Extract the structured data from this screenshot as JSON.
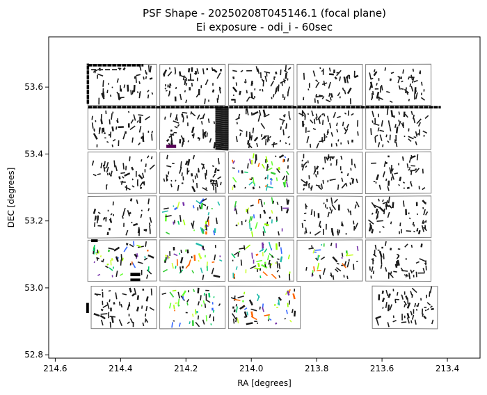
{
  "chart_data": {
    "type": "scatter",
    "title": "PSF Shape - 20250208T045146.1 (focal plane)",
    "subtitle": "Ei exposure - odi_i - 60sec",
    "xlabel": "RA [degrees]",
    "ylabel": "DEC [degrees]",
    "xlim": [
      214.62,
      213.3
    ],
    "ylim": [
      52.79,
      53.75
    ],
    "x_inverted": true,
    "xticks": [
      214.6,
      214.4,
      214.2,
      214.0,
      213.8,
      213.6,
      213.4
    ],
    "xtick_labels": [
      "214.6",
      "214.4",
      "214.2",
      "214.0",
      "213.8",
      "213.6",
      "213.4"
    ],
    "yticks": [
      52.8,
      53.0,
      53.2,
      53.4,
      53.6
    ],
    "ytick_labels": [
      "52.8",
      "53.0",
      "53.2",
      "53.4",
      "53.6"
    ],
    "grid": false,
    "chip_grid": {
      "ra_edges": [
        [
          214.5,
          214.29
        ],
        [
          214.28,
          214.08
        ],
        [
          214.07,
          213.87
        ],
        [
          213.86,
          213.66
        ],
        [
          213.65,
          213.45
        ]
      ],
      "dec_rows": [
        [
          53.545,
          53.668
        ],
        [
          53.414,
          53.538
        ],
        [
          53.282,
          53.406
        ],
        [
          53.15,
          53.274
        ],
        [
          53.02,
          53.143
        ],
        [
          52.878,
          53.005
        ]
      ],
      "missing": [
        [
          5,
          3
        ]
      ],
      "row5_ra_edges": [
        [
          214.49,
          214.29
        ],
        [
          214.28,
          214.08
        ],
        [
          214.07,
          213.85
        ],
        [
          213.86,
          213.66
        ],
        [
          213.63,
          213.43
        ]
      ]
    },
    "edge_color": "#808080",
    "default_stick_color": "#1a1a1a",
    "colored_chips": [
      [
        2,
        2
      ],
      [
        3,
        1
      ],
      [
        3,
        2
      ],
      [
        4,
        0
      ],
      [
        4,
        1
      ],
      [
        4,
        2
      ],
      [
        4,
        3
      ],
      [
        5,
        1
      ],
      [
        5,
        2
      ]
    ],
    "stick_palette": [
      "#33cc33",
      "#66ff33",
      "#00cc66",
      "#99ff00",
      "#ccff33",
      "#22bbaa",
      "#7733aa",
      "#ff6600",
      "#3366ff"
    ],
    "saturated_features": [
      {
        "kind": "vertical_block",
        "ra": [
          214.11,
          214.07
        ],
        "dec": [
          53.41,
          53.54
        ],
        "color": "#1a1a1a"
      },
      {
        "kind": "block",
        "ra": [
          214.26,
          214.23
        ],
        "dec": [
          53.418,
          53.428
        ],
        "color": "#550055"
      },
      {
        "kind": "edge_line",
        "ra": [
          214.5,
          213.42
        ],
        "dec": [
          53.54,
          53.54
        ],
        "color": "#000000"
      },
      {
        "kind": "edge_line",
        "ra": [
          214.5,
          214.5
        ],
        "dec": [
          53.55,
          53.67
        ],
        "color": "#000000"
      },
      {
        "kind": "edge_line",
        "ra": [
          214.5,
          214.33
        ],
        "dec": [
          53.665,
          53.665
        ],
        "color": "#000000"
      },
      {
        "kind": "dashed_line",
        "ra": [
          214.49,
          214.4
        ],
        "dec": [
          53.652,
          53.652
        ],
        "color": "#333333"
      },
      {
        "kind": "block",
        "ra": [
          214.49,
          214.47
        ],
        "dec": [
          53.137,
          53.145
        ],
        "color": "#000000"
      },
      {
        "kind": "block",
        "ra": [
          214.37,
          214.34
        ],
        "dec": [
          53.035,
          53.045
        ],
        "color": "#000000"
      },
      {
        "kind": "block",
        "ra": [
          214.37,
          214.34
        ],
        "dec": [
          53.02,
          53.028
        ],
        "color": "#000000"
      },
      {
        "kind": "block",
        "ra": [
          214.505,
          214.497
        ],
        "dec": [
          52.925,
          52.955
        ],
        "color": "#000000"
      }
    ]
  }
}
